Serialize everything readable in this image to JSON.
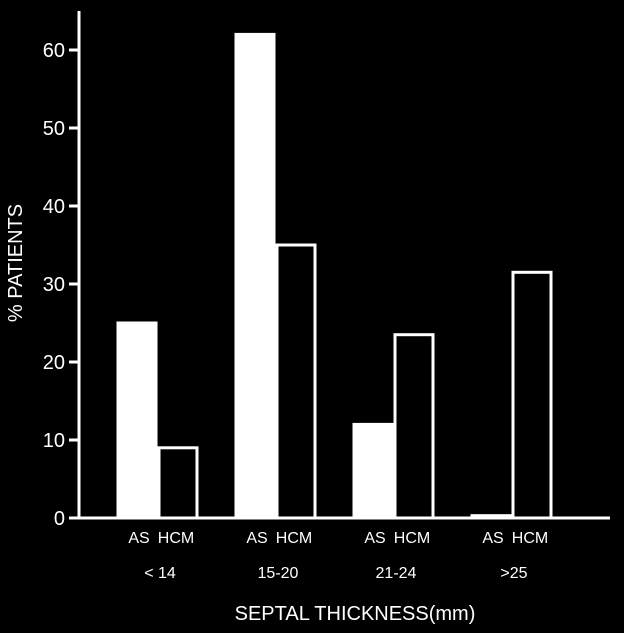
{
  "chart_data": {
    "type": "bar",
    "title": "",
    "xlabel": "SEPTAL THICKNESS(mm)",
    "ylabel": "% PATIENTS",
    "ylim": [
      0,
      65
    ],
    "yticks": [
      0,
      10,
      20,
      30,
      40,
      50,
      60
    ],
    "grid": false,
    "legend": "none",
    "categories": [
      "< 14",
      "15-20",
      "21-24",
      ">25"
    ],
    "series": [
      {
        "name": "AS",
        "values": [
          25,
          62,
          12,
          0.3
        ],
        "fill": "#ffffff"
      },
      {
        "name": "HCM",
        "values": [
          9,
          35,
          23.5,
          31.5
        ],
        "fill": "#000000"
      }
    ],
    "colors": {
      "background": "#000000",
      "foreground": "#ffffff"
    }
  }
}
